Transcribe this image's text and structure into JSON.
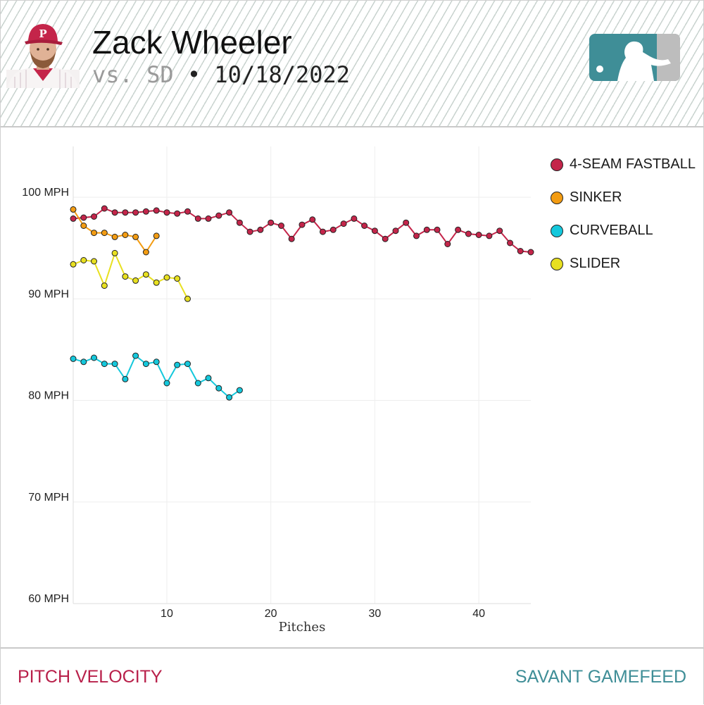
{
  "header": {
    "player_name": "Zack Wheeler",
    "opponent": "vs. SD",
    "separator": "•",
    "date": "10/18/2022"
  },
  "footer": {
    "left_label": "PITCH VELOCITY",
    "right_label": "SAVANT GAMEFEED"
  },
  "colors": {
    "4-seam": "#c4254a",
    "sinker": "#f39c12",
    "curveball": "#14c8dc",
    "slider": "#e8e020",
    "footer_left": "#b8204a",
    "footer_right": "#3f8e97"
  },
  "chart_data": {
    "type": "line",
    "xlabel": "Pitches",
    "ylabel": "",
    "xlim": [
      1,
      45
    ],
    "ylim": [
      60,
      105
    ],
    "x_ticks": [
      10,
      20,
      30,
      40
    ],
    "y_ticks": [
      {
        "value": 60,
        "label": "60 MPH"
      },
      {
        "value": 70,
        "label": "70 MPH"
      },
      {
        "value": 80,
        "label": "80 MPH"
      },
      {
        "value": 90,
        "label": "90 MPH"
      },
      {
        "value": 100,
        "label": "100 MPH"
      }
    ],
    "grid": true,
    "legend_position": "top-right",
    "series": [
      {
        "name": "4-SEAM FASTBALL",
        "color": "#c4254a",
        "values": [
          97.9,
          98.0,
          98.1,
          98.9,
          98.5,
          98.5,
          98.5,
          98.6,
          98.7,
          98.5,
          98.4,
          98.6,
          97.9,
          97.9,
          98.2,
          98.5,
          97.5,
          96.6,
          96.8,
          97.5,
          97.2,
          95.9,
          97.3,
          97.8,
          96.6,
          96.8,
          97.4,
          97.9,
          97.2,
          96.7,
          95.9,
          96.7,
          97.5,
          96.2,
          96.8,
          96.8,
          95.4,
          96.8,
          96.4,
          96.3,
          96.2,
          96.7,
          95.5,
          94.7,
          94.6
        ]
      },
      {
        "name": "SINKER",
        "color": "#f39c12",
        "values": [
          98.8,
          97.2,
          96.5,
          96.5,
          96.1,
          96.3,
          96.1,
          94.6,
          96.2
        ]
      },
      {
        "name": "CURVEBALL",
        "color": "#14c8dc",
        "values": [
          84.1,
          83.8,
          84.2,
          83.6,
          83.6,
          82.1,
          84.4,
          83.6,
          83.8,
          81.7,
          83.5,
          83.6,
          81.7,
          82.2,
          81.2,
          80.3,
          81.0
        ]
      },
      {
        "name": "SLIDER",
        "color": "#e8e020",
        "values": [
          93.4,
          93.8,
          93.7,
          91.3,
          94.5,
          92.2,
          91.8,
          92.4,
          91.6,
          92.1,
          92.0,
          90.0
        ]
      }
    ]
  }
}
